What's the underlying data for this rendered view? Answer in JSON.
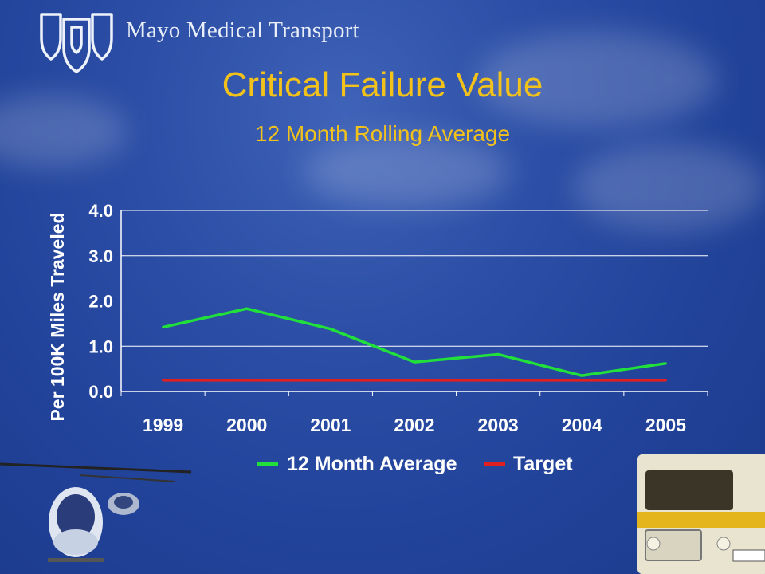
{
  "brand": {
    "name": "Mayo Medical Transport",
    "logo_icon": "triple-shield-logo-icon"
  },
  "slide": {
    "title": "Critical Failure Value",
    "subtitle": "12 Month Rolling Average"
  },
  "colors": {
    "background": "#2a4ba3",
    "title": "#f2c21b",
    "series_average": "#22e03c",
    "series_target": "#e02020",
    "text": "#ffffff",
    "grid": "#ffffff"
  },
  "chart_data": {
    "type": "line",
    "title": "",
    "xlabel": "",
    "ylabel": "Per 100K Miles Traveled",
    "categories": [
      "1999",
      "2000",
      "2001",
      "2002",
      "2003",
      "2004",
      "2005"
    ],
    "yticks": [
      "0.0",
      "1.0",
      "2.0",
      "3.0",
      "4.0"
    ],
    "ylim": [
      0,
      4
    ],
    "grid": true,
    "legend_position": "bottom",
    "series": [
      {
        "name": "12 Month Average",
        "color": "#22e03c",
        "values": [
          1.42,
          1.83,
          1.38,
          0.65,
          0.82,
          0.35,
          0.62
        ]
      },
      {
        "name": "Target",
        "color": "#e02020",
        "values": [
          0.25,
          0.25,
          0.25,
          0.25,
          0.25,
          0.25,
          0.25
        ]
      }
    ]
  }
}
